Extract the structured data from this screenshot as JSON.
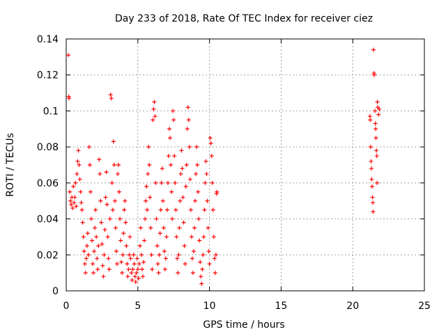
{
  "chart_data": {
    "type": "scatter",
    "title": "Day 233 of 2018, Rate Of TEC Index for receiver ciez",
    "xlabel": "GPS time / hours",
    "ylabel": "ROTI / TECUs",
    "xlim": [
      0,
      25
    ],
    "ylim": [
      0,
      0.14
    ],
    "x_ticks": [
      "0",
      "5",
      "10",
      "15",
      "20",
      "25"
    ],
    "y_ticks": [
      "0",
      "0.02",
      "0.04",
      "0.06",
      "0.08",
      "0.1",
      "0.12",
      "0.14"
    ],
    "grid": true,
    "marker": "plus",
    "color": "#ff0000",
    "series": [
      {
        "points": [
          [
            0.15,
            0.131
          ],
          [
            0.18,
            0.108
          ],
          [
            0.2,
            0.107
          ],
          [
            0.25,
            0.055
          ],
          [
            0.3,
            0.05
          ],
          [
            0.35,
            0.048
          ],
          [
            0.4,
            0.052
          ],
          [
            0.45,
            0.046
          ],
          [
            0.5,
            0.058
          ],
          [
            0.55,
            0.049
          ],
          [
            0.6,
            0.052
          ],
          [
            0.65,
            0.06
          ],
          [
            0.7,
            0.047
          ],
          [
            0.75,
            0.065
          ],
          [
            0.8,
            0.072
          ],
          [
            0.85,
            0.078
          ],
          [
            0.9,
            0.07
          ],
          [
            0.95,
            0.062
          ],
          [
            1.0,
            0.055
          ],
          [
            1.05,
            0.049
          ],
          [
            1.1,
            0.045
          ],
          [
            1.15,
            0.038
          ],
          [
            1.2,
            0.03
          ],
          [
            1.25,
            0.022
          ],
          [
            1.3,
            0.015
          ],
          [
            1.35,
            0.01
          ],
          [
            1.4,
            0.018
          ],
          [
            1.45,
            0.025
          ],
          [
            1.5,
            0.032
          ],
          [
            1.55,
            0.02
          ],
          [
            1.6,
            0.08
          ],
          [
            1.65,
            0.07
          ],
          [
            1.7,
            0.055
          ],
          [
            1.75,
            0.04
          ],
          [
            1.8,
            0.028
          ],
          [
            1.85,
            0.015
          ],
          [
            1.9,
            0.01
          ],
          [
            1.95,
            0.022
          ],
          [
            2.0,
            0.035
          ],
          [
            2.05,
            0.045
          ],
          [
            2.1,
            0.03
          ],
          [
            2.15,
            0.018
          ],
          [
            2.2,
            0.012
          ],
          [
            2.25,
            0.025
          ],
          [
            2.3,
            0.073
          ],
          [
            2.35,
            0.065
          ],
          [
            2.4,
            0.05
          ],
          [
            2.45,
            0.038
          ],
          [
            2.5,
            0.026
          ],
          [
            2.55,
            0.014
          ],
          [
            2.6,
            0.008
          ],
          [
            2.65,
            0.02
          ],
          [
            2.7,
            0.034
          ],
          [
            2.75,
            0.052
          ],
          [
            2.8,
            0.066
          ],
          [
            2.85,
            0.048
          ],
          [
            2.9,
            0.03
          ],
          [
            2.95,
            0.018
          ],
          [
            3.0,
            0.012
          ],
          [
            3.05,
            0.04
          ],
          [
            3.1,
            0.109
          ],
          [
            3.15,
            0.107
          ],
          [
            3.2,
            0.06
          ],
          [
            3.25,
            0.045
          ],
          [
            3.3,
            0.083
          ],
          [
            3.35,
            0.07
          ],
          [
            3.4,
            0.05
          ],
          [
            3.45,
            0.035
          ],
          [
            3.5,
            0.022
          ],
          [
            3.55,
            0.015
          ],
          [
            3.6,
            0.065
          ],
          [
            3.65,
            0.07
          ],
          [
            3.7,
            0.055
          ],
          [
            3.75,
            0.04
          ],
          [
            3.8,
            0.028
          ],
          [
            3.85,
            0.016
          ],
          [
            3.9,
            0.01
          ],
          [
            3.95,
            0.02
          ],
          [
            4.0,
            0.032
          ],
          [
            4.05,
            0.045
          ],
          [
            4.1,
            0.05
          ],
          [
            4.15,
            0.038
          ],
          [
            4.2,
            0.025
          ],
          [
            4.25,
            0.015
          ],
          [
            4.3,
            0.008
          ],
          [
            4.35,
            0.012
          ],
          [
            4.4,
            0.02
          ],
          [
            4.45,
            0.03
          ],
          [
            4.5,
            0.018
          ],
          [
            4.55,
            0.01
          ],
          [
            4.6,
            0.006
          ],
          [
            4.65,
            0.012
          ],
          [
            4.7,
            0.02
          ],
          [
            4.75,
            0.015
          ],
          [
            4.8,
            0.008
          ],
          [
            4.85,
            0.005
          ],
          [
            4.9,
            0.01
          ],
          [
            4.95,
            0.018
          ],
          [
            5.0,
            0.012
          ],
          [
            5.05,
            0.007
          ],
          [
            5.1,
            0.015
          ],
          [
            5.15,
            0.025
          ],
          [
            5.2,
            0.035
          ],
          [
            5.25,
            0.02
          ],
          [
            5.3,
            0.012
          ],
          [
            5.35,
            0.008
          ],
          [
            5.4,
            0.016
          ],
          [
            5.45,
            0.028
          ],
          [
            5.5,
            0.04
          ],
          [
            5.55,
            0.05
          ],
          [
            5.6,
            0.058
          ],
          [
            5.65,
            0.045
          ],
          [
            5.7,
            0.065
          ],
          [
            5.75,
            0.08
          ],
          [
            5.8,
            0.07
          ],
          [
            5.85,
            0.052
          ],
          [
            5.9,
            0.035
          ],
          [
            5.95,
            0.02
          ],
          [
            6.0,
            0.012
          ],
          [
            6.05,
            0.095
          ],
          [
            6.1,
            0.101
          ],
          [
            6.15,
            0.105
          ],
          [
            6.2,
            0.097
          ],
          [
            6.25,
            0.06
          ],
          [
            6.3,
            0.04
          ],
          [
            6.35,
            0.025
          ],
          [
            6.4,
            0.015
          ],
          [
            6.45,
            0.01
          ],
          [
            6.5,
            0.02
          ],
          [
            6.55,
            0.032
          ],
          [
            6.6,
            0.045
          ],
          [
            6.65,
            0.06
          ],
          [
            6.7,
            0.068
          ],
          [
            6.75,
            0.05
          ],
          [
            6.8,
            0.035
          ],
          [
            6.85,
            0.022
          ],
          [
            6.9,
            0.012
          ],
          [
            6.95,
            0.018
          ],
          [
            7.0,
            0.03
          ],
          [
            7.05,
            0.045
          ],
          [
            7.1,
            0.06
          ],
          [
            7.15,
            0.075
          ],
          [
            7.2,
            0.09
          ],
          [
            7.25,
            0.085
          ],
          [
            7.3,
            0.07
          ],
          [
            7.35,
            0.055
          ],
          [
            7.4,
            0.04
          ],
          [
            7.45,
            0.1
          ],
          [
            7.5,
            0.095
          ],
          [
            7.55,
            0.075
          ],
          [
            7.6,
            0.06
          ],
          [
            7.65,
            0.045
          ],
          [
            7.7,
            0.03
          ],
          [
            7.75,
            0.018
          ],
          [
            7.8,
            0.01
          ],
          [
            7.85,
            0.02
          ],
          [
            7.9,
            0.035
          ],
          [
            7.95,
            0.05
          ],
          [
            8.0,
            0.065
          ],
          [
            8.05,
            0.078
          ],
          [
            8.1,
            0.068
          ],
          [
            8.15,
            0.052
          ],
          [
            8.2,
            0.038
          ],
          [
            8.25,
            0.025
          ],
          [
            8.3,
            0.015
          ],
          [
            8.35,
            0.058
          ],
          [
            8.4,
            0.07
          ],
          [
            8.45,
            0.09
          ],
          [
            8.5,
            0.102
          ],
          [
            8.55,
            0.095
          ],
          [
            8.6,
            0.08
          ],
          [
            8.65,
            0.062
          ],
          [
            8.7,
            0.045
          ],
          [
            8.75,
            0.03
          ],
          [
            8.8,
            0.018
          ],
          [
            8.85,
            0.01
          ],
          [
            8.9,
            0.022
          ],
          [
            8.95,
            0.035
          ],
          [
            9.0,
            0.05
          ],
          [
            9.05,
            0.065
          ],
          [
            9.1,
            0.08
          ],
          [
            9.15,
            0.07
          ],
          [
            9.2,
            0.055
          ],
          [
            9.25,
            0.04
          ],
          [
            9.3,
            0.028
          ],
          [
            9.35,
            0.016
          ],
          [
            9.4,
            0.008
          ],
          [
            9.45,
            0.004
          ],
          [
            9.5,
            0.012
          ],
          [
            9.55,
            0.02
          ],
          [
            9.6,
            0.03
          ],
          [
            9.65,
            0.045
          ],
          [
            9.7,
            0.06
          ],
          [
            9.75,
            0.072
          ],
          [
            9.8,
            0.065
          ],
          [
            9.85,
            0.05
          ],
          [
            9.9,
            0.035
          ],
          [
            9.95,
            0.022
          ],
          [
            10.0,
            0.015
          ],
          [
            10.05,
            0.085
          ],
          [
            10.1,
            0.082
          ],
          [
            10.15,
            0.075
          ],
          [
            10.2,
            0.06
          ],
          [
            10.25,
            0.045
          ],
          [
            10.3,
            0.03
          ],
          [
            10.35,
            0.018
          ],
          [
            10.4,
            0.01
          ],
          [
            10.45,
            0.02
          ],
          [
            10.5,
            0.054
          ],
          [
            10.52,
            0.055
          ],
          [
            21.2,
            0.097
          ],
          [
            21.22,
            0.095
          ],
          [
            21.25,
            0.08
          ],
          [
            21.28,
            0.072
          ],
          [
            21.3,
            0.068
          ],
          [
            21.32,
            0.062
          ],
          [
            21.35,
            0.058
          ],
          [
            21.38,
            0.052
          ],
          [
            21.4,
            0.049
          ],
          [
            21.42,
            0.044
          ],
          [
            21.45,
            0.134
          ],
          [
            21.48,
            0.121
          ],
          [
            21.5,
            0.12
          ],
          [
            21.55,
            0.1
          ],
          [
            21.58,
            0.093
          ],
          [
            21.6,
            0.09
          ],
          [
            21.62,
            0.085
          ],
          [
            21.65,
            0.078
          ],
          [
            21.68,
            0.075
          ],
          [
            21.7,
            0.06
          ],
          [
            21.72,
            0.105
          ],
          [
            21.75,
            0.102
          ],
          [
            21.8,
            0.098
          ],
          [
            21.85,
            0.101
          ]
        ]
      }
    ]
  }
}
